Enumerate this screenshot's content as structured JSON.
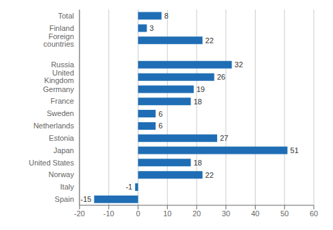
{
  "chart_data": {
    "type": "bar",
    "orientation": "horizontal",
    "categories": [
      "Total",
      "Finland",
      "Foreign countries",
      null,
      "Russia",
      "United Kingdom",
      "Germany",
      "France",
      "Sweden",
      "Netherlands",
      "Estonia",
      "Japan",
      "United States",
      "Norway",
      "Italy",
      "Spain"
    ],
    "values": [
      8,
      3,
      22,
      null,
      32,
      26,
      19,
      18,
      6,
      6,
      27,
      51,
      18,
      22,
      -1,
      -15
    ],
    "color": "#1f6eb5",
    "xlim": [
      -20,
      60
    ],
    "xticks": [
      -20,
      -10,
      0,
      10,
      20,
      30,
      40,
      50,
      60
    ],
    "grid": true,
    "data_labels": true
  }
}
